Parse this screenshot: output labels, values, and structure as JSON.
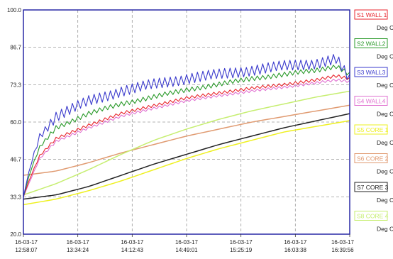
{
  "chart_data": {
    "type": "line",
    "title": "",
    "xlabel": "",
    "ylabel": "",
    "ylim": [
      20.0,
      100.0
    ],
    "yticks": [
      "100.0",
      "86.7",
      "73.3",
      "60.0",
      "46.7",
      "33.3",
      "20.0"
    ],
    "ytick_values": [
      100.0,
      86.7,
      73.3,
      60.0,
      46.7,
      33.3,
      20.0
    ],
    "xlim": [
      0,
      1
    ],
    "xticks": [
      {
        "date": "16-03-17",
        "time": "12:58:07"
      },
      {
        "date": "16-03-17",
        "time": "13:34:24"
      },
      {
        "date": "16-03-17",
        "time": "14:12:43"
      },
      {
        "date": "16-03-17",
        "time": "14:49:01"
      },
      {
        "date": "16-03-17",
        "time": "15:25:19"
      },
      {
        "date": "16-03-17",
        "time": "16:03:38"
      },
      {
        "date": "16-03-17",
        "time": "16:39:56"
      }
    ],
    "grid": true,
    "legend_position": "right",
    "background": "#ffffff",
    "plot_border_color": "#1a1aa0",
    "grid_color": "#9a9a9a",
    "unit_text": "Deg C",
    "series": [
      {
        "name": "S1 WALL 1",
        "color": "#e8242c",
        "noise": 0.6,
        "x": [
          0.0,
          0.02,
          0.05,
          0.1,
          0.2,
          0.3,
          0.4,
          0.5,
          0.6,
          0.7,
          0.8,
          0.9,
          0.96,
          1.0
        ],
        "y": [
          33.3,
          40.0,
          48.0,
          54.0,
          59.0,
          63.0,
          66.0,
          68.5,
          70.5,
          72.0,
          73.5,
          75.0,
          76.5,
          75.5
        ]
      },
      {
        "name": "S2 WALL2",
        "color": "#2a9a2a",
        "noise": 0.9,
        "x": [
          0.0,
          0.02,
          0.05,
          0.1,
          0.2,
          0.3,
          0.4,
          0.5,
          0.6,
          0.7,
          0.8,
          0.9,
          0.96,
          1.0
        ],
        "y": [
          33.3,
          42.0,
          51.0,
          58.0,
          63.0,
          66.5,
          69.0,
          71.5,
          73.5,
          75.5,
          77.0,
          78.5,
          80.0,
          77.0
        ]
      },
      {
        "name": "S3 WALL3",
        "color": "#3a3acc",
        "noise": 2.0,
        "x": [
          0.0,
          0.02,
          0.05,
          0.1,
          0.2,
          0.3,
          0.4,
          0.5,
          0.6,
          0.7,
          0.8,
          0.9,
          0.96,
          1.0
        ],
        "y": [
          33.3,
          44.0,
          55.0,
          62.0,
          67.5,
          71.0,
          73.5,
          75.5,
          77.0,
          78.5,
          80.0,
          81.0,
          82.5,
          75.0
        ]
      },
      {
        "name": "S4 WALL4",
        "color": "#e070d0",
        "noise": 0.5,
        "x": [
          0.0,
          0.02,
          0.05,
          0.1,
          0.2,
          0.3,
          0.4,
          0.5,
          0.6,
          0.7,
          0.8,
          0.9,
          0.96,
          1.0
        ],
        "y": [
          33.3,
          39.0,
          47.0,
          53.0,
          58.0,
          62.0,
          65.0,
          67.5,
          69.5,
          71.0,
          72.5,
          74.0,
          75.0,
          74.5
        ]
      },
      {
        "name": "S5 CORE 1",
        "color": "#eef020",
        "noise": 0,
        "x": [
          0.0,
          0.1,
          0.2,
          0.3,
          0.4,
          0.5,
          0.6,
          0.7,
          0.8,
          0.9,
          1.0
        ],
        "y": [
          30.5,
          32.5,
          35.5,
          39.0,
          43.0,
          47.0,
          50.5,
          53.5,
          56.5,
          58.5,
          60.5
        ]
      },
      {
        "name": "S6 CORE 2",
        "color": "#e09a70",
        "noise": 0,
        "x": [
          0.0,
          0.1,
          0.2,
          0.3,
          0.4,
          0.5,
          0.6,
          0.7,
          0.8,
          0.9,
          1.0
        ],
        "y": [
          41.0,
          42.5,
          45.5,
          49.0,
          52.0,
          55.0,
          57.5,
          60.0,
          62.0,
          64.0,
          66.0
        ]
      },
      {
        "name": "S7 CORE 3",
        "color": "#222222",
        "noise": 0,
        "x": [
          0.0,
          0.1,
          0.2,
          0.3,
          0.4,
          0.5,
          0.6,
          0.7,
          0.8,
          0.9,
          1.0
        ],
        "y": [
          32.5,
          34.0,
          37.0,
          41.0,
          45.0,
          48.5,
          52.0,
          55.0,
          58.0,
          60.5,
          63.0
        ]
      },
      {
        "name": "S8 CORE 4",
        "color": "#c6ee70",
        "noise": 0,
        "x": [
          0.0,
          0.1,
          0.2,
          0.3,
          0.4,
          0.5,
          0.6,
          0.7,
          0.8,
          0.9,
          1.0
        ],
        "y": [
          34.0,
          38.0,
          43.0,
          48.5,
          53.5,
          57.5,
          61.0,
          64.0,
          66.5,
          69.0,
          71.0
        ]
      }
    ]
  }
}
